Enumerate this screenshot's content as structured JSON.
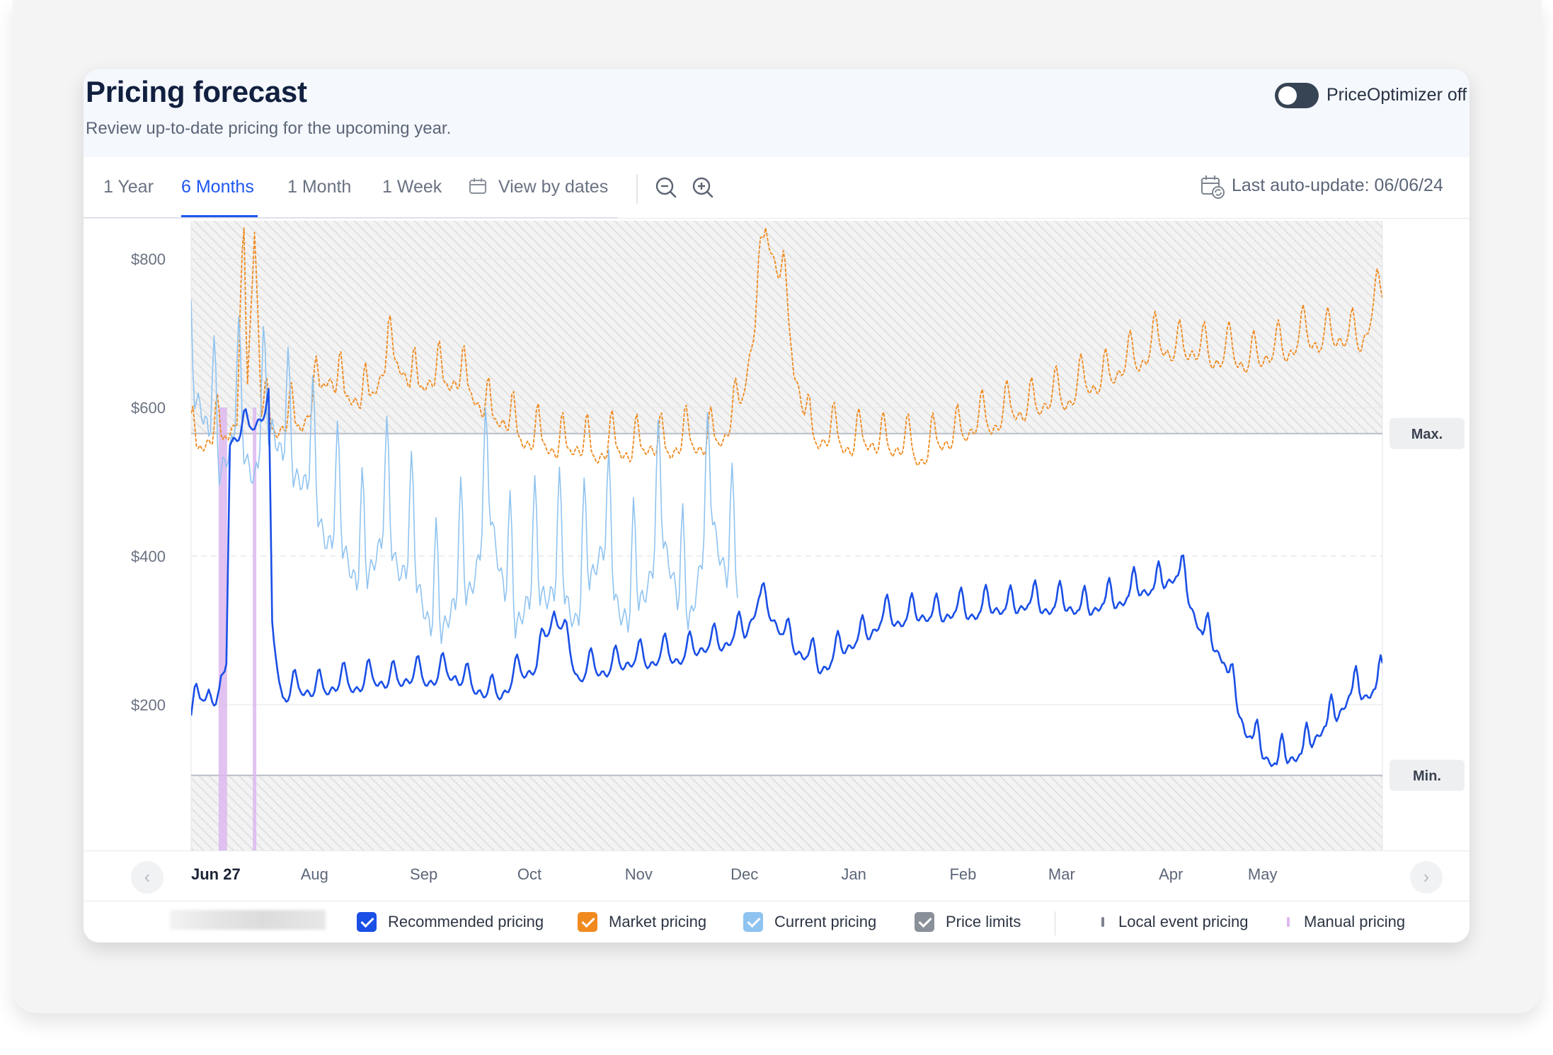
{
  "header": {
    "title": "Pricing forecast",
    "subtitle": "Review up-to-date pricing for the upcoming year.",
    "optimizer_label": "PriceOptimizer off",
    "optimizer_on": false
  },
  "tabs": [
    {
      "label": "1 Year",
      "active": false
    },
    {
      "label": "6 Months",
      "active": true
    },
    {
      "label": "1 Month",
      "active": false
    },
    {
      "label": "1 Week",
      "active": false
    },
    {
      "label": "View by dates",
      "active": false,
      "icon": "calendar-icon"
    }
  ],
  "toolbar": {
    "zoom_out_icon": "zoom-out-icon",
    "zoom_in_icon": "zoom-in-icon",
    "last_update": "Last auto-update: 06/06/24",
    "last_update_icon": "calendar-refresh-icon"
  },
  "chart_data": {
    "type": "line",
    "x_range": [
      "2024-06-27",
      "2025-05-31"
    ],
    "x_axis_labels": [
      "Jun 27",
      "Aug",
      "Sep",
      "Oct",
      "Nov",
      "Dec",
      "Jan",
      "Feb",
      "Mar",
      "Apr",
      "May"
    ],
    "y_ticks": [
      "$800",
      "$600",
      "$400",
      "$200"
    ],
    "y_tick_values": [
      800,
      600,
      400,
      200
    ],
    "ylim": [
      0,
      850
    ],
    "price_limits": {
      "max": 565,
      "min": 105,
      "max_label": "Max.",
      "min_label": "Min."
    },
    "manual_pricing_dates": [
      "2024-07-06",
      "2024-07-15"
    ],
    "series": [
      {
        "name": "Recommended pricing",
        "color": "#1a4fe6",
        "anchors": [
          [
            "2024-06-27",
            190
          ],
          [
            "2024-07-02",
            230
          ],
          [
            "2024-07-05",
            200
          ],
          [
            "2024-07-07",
            260
          ],
          [
            "2024-07-08",
            560
          ],
          [
            "2024-07-12",
            575
          ],
          [
            "2024-07-16",
            590
          ],
          [
            "2024-07-19",
            600
          ],
          [
            "2024-07-20",
            300
          ],
          [
            "2024-07-23",
            220
          ],
          [
            "2024-08-15",
            235
          ],
          [
            "2024-09-10",
            245
          ],
          [
            "2024-09-20",
            215
          ],
          [
            "2024-10-03",
            260
          ],
          [
            "2024-10-08",
            330
          ],
          [
            "2024-10-15",
            245
          ],
          [
            "2024-11-01",
            265
          ],
          [
            "2024-11-12",
            270
          ],
          [
            "2024-12-01",
            300
          ],
          [
            "2024-12-05",
            350
          ],
          [
            "2024-12-12",
            300
          ],
          [
            "2024-12-22",
            255
          ],
          [
            "2025-01-10",
            320
          ],
          [
            "2025-02-01",
            330
          ],
          [
            "2025-02-20",
            340
          ],
          [
            "2025-03-10",
            335
          ],
          [
            "2025-03-27",
            365
          ],
          [
            "2025-04-04",
            380
          ],
          [
            "2025-04-10",
            300
          ],
          [
            "2025-04-16",
            270
          ],
          [
            "2025-04-22",
            170
          ],
          [
            "2025-05-01",
            125
          ],
          [
            "2025-05-10",
            150
          ],
          [
            "2025-05-18",
            195
          ],
          [
            "2025-05-22",
            220
          ],
          [
            "2025-05-26",
            220
          ],
          [
            "2025-05-31",
            240
          ]
        ]
      },
      {
        "name": "Market pricing",
        "color": "#f08a1e",
        "anchors": [
          [
            "2024-06-27",
            560
          ],
          [
            "2024-07-06",
            570
          ],
          [
            "2024-07-10",
            600
          ],
          [
            "2024-07-12",
            820
          ],
          [
            "2024-07-13",
            640
          ],
          [
            "2024-07-15",
            850
          ],
          [
            "2024-07-17",
            610
          ],
          [
            "2024-07-21",
            580
          ],
          [
            "2024-07-28",
            590
          ],
          [
            "2024-08-05",
            650
          ],
          [
            "2024-08-15",
            610
          ],
          [
            "2024-08-22",
            680
          ],
          [
            "2024-08-30",
            640
          ],
          [
            "2024-09-10",
            650
          ],
          [
            "2024-09-20",
            600
          ],
          [
            "2024-10-03",
            560
          ],
          [
            "2024-10-20",
            550
          ],
          [
            "2024-11-08",
            555
          ],
          [
            "2024-11-25",
            565
          ],
          [
            "2024-11-30",
            620
          ],
          [
            "2024-12-04",
            720
          ],
          [
            "2024-12-07",
            850
          ],
          [
            "2024-12-12",
            780
          ],
          [
            "2024-12-15",
            660
          ],
          [
            "2024-12-20",
            570
          ],
          [
            "2025-01-01",
            560
          ],
          [
            "2025-01-10",
            560
          ],
          [
            "2025-01-20",
            545
          ],
          [
            "2025-02-01",
            575
          ],
          [
            "2025-02-15",
            600
          ],
          [
            "2025-03-01",
            620
          ],
          [
            "2025-03-15",
            650
          ],
          [
            "2025-03-28",
            690
          ],
          [
            "2025-04-10",
            680
          ],
          [
            "2025-04-25",
            670
          ],
          [
            "2025-05-10",
            700
          ],
          [
            "2025-05-25",
            700
          ],
          [
            "2025-05-31",
            760
          ]
        ]
      },
      {
        "name": "Current pricing",
        "color": "#8fc3f0",
        "anchors": [
          [
            "2024-06-27",
            650
          ],
          [
            "2024-07-01",
            620
          ],
          [
            "2024-07-05",
            560
          ],
          [
            "2024-07-10",
            590
          ],
          [
            "2024-07-15",
            560
          ],
          [
            "2024-07-20",
            600
          ],
          [
            "2024-07-28",
            540
          ],
          [
            "2024-08-06",
            460
          ],
          [
            "2024-08-14",
            400
          ],
          [
            "2024-08-22",
            460
          ],
          [
            "2024-08-28",
            410
          ],
          [
            "2024-09-05",
            330
          ],
          [
            "2024-09-12",
            380
          ],
          [
            "2024-09-20",
            480
          ],
          [
            "2024-09-27",
            340
          ],
          [
            "2024-10-05",
            400
          ],
          [
            "2024-10-14",
            360
          ],
          [
            "2024-10-22",
            440
          ],
          [
            "2024-10-30",
            330
          ],
          [
            "2024-11-07",
            470
          ],
          [
            "2024-11-14",
            340
          ],
          [
            "2024-11-22",
            480
          ],
          [
            "2024-11-29",
            380
          ]
        ]
      },
      {
        "name": "Price limits",
        "color": "#8a9099"
      }
    ],
    "legend": [
      {
        "name": "Recommended pricing",
        "color": "#1a4fe6",
        "checked": true
      },
      {
        "name": "Market pricing",
        "color": "#f08a1e",
        "checked": true
      },
      {
        "name": "Current pricing",
        "color": "#8fc3f0",
        "checked": true
      },
      {
        "name": "Price limits",
        "color": "#8a9099",
        "checked": true
      }
    ],
    "markers": [
      {
        "name": "Local event pricing",
        "color": "#7c838e"
      },
      {
        "name": "Manual pricing",
        "color": "#dcb7ee"
      }
    ]
  }
}
